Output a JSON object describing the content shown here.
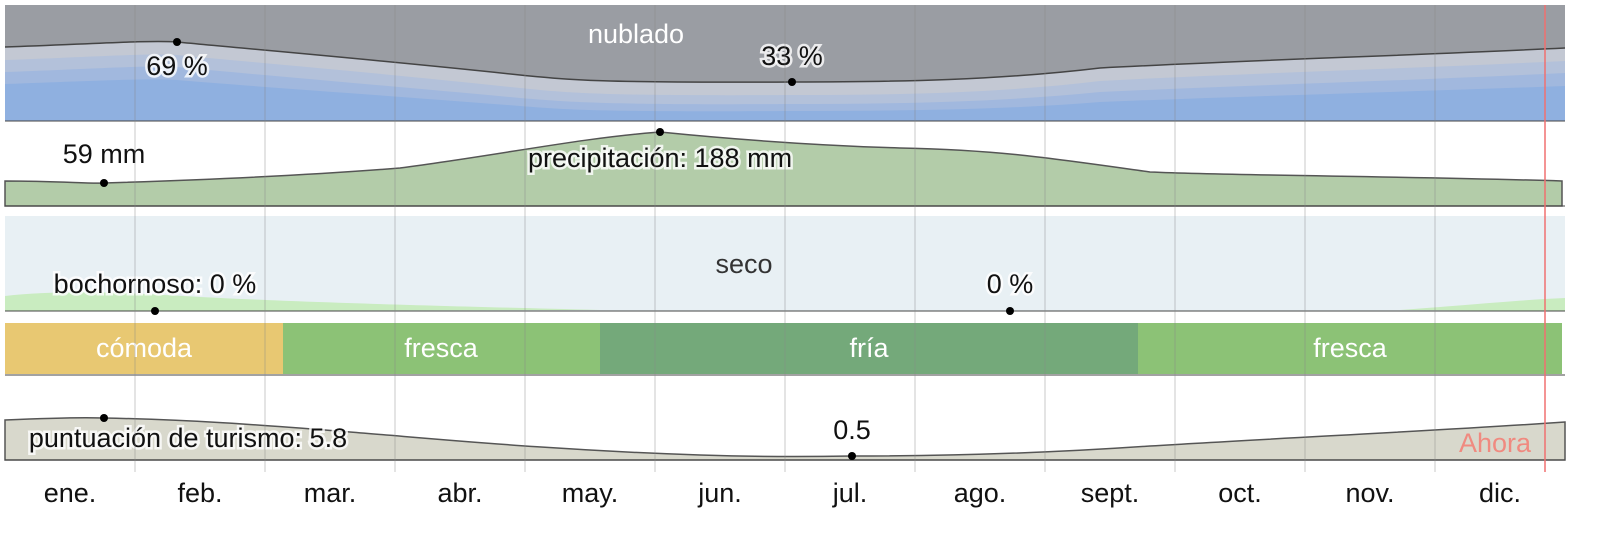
{
  "clouds": {
    "label": "nublado",
    "high": "69 %",
    "low": "33 %"
  },
  "precipitation": {
    "low": "59 mm",
    "high": "precipitación: 188 mm"
  },
  "humidity": {
    "label": "seco",
    "high": "bochornoso: 0 %",
    "low": "0 %"
  },
  "temperature_bands": [
    "cómoda",
    "fresca",
    "fría",
    "fresca"
  ],
  "tourism": {
    "high": "puntuación de turismo: 5.8",
    "low": "0.5",
    "now": "Ahora"
  },
  "months": [
    "ene.",
    "feb.",
    "mar.",
    "abr.",
    "may.",
    "jun.",
    "jul.",
    "ago.",
    "sept.",
    "oct.",
    "nov.",
    "dic."
  ]
}
